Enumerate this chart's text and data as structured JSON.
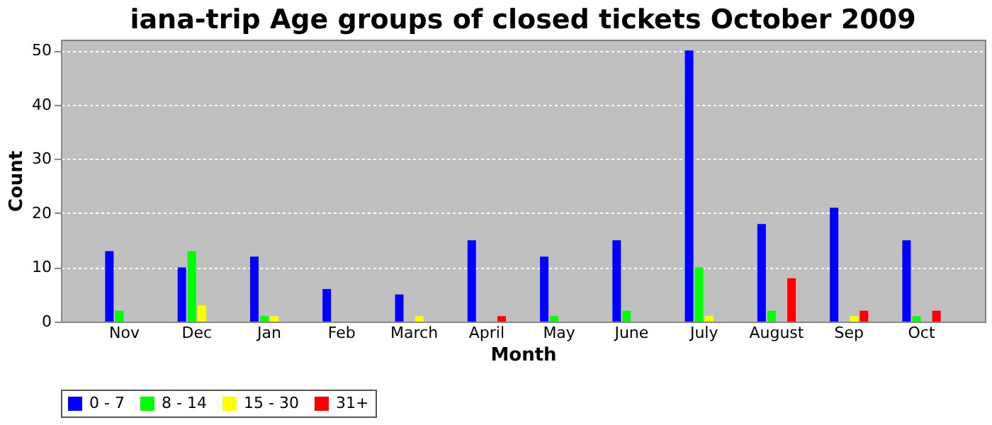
{
  "chart_data": {
    "type": "bar",
    "title": "iana-trip Age groups of closed tickets October 2009",
    "xlabel": "Month",
    "ylabel": "Count",
    "categories": [
      "Nov",
      "Dec",
      "Jan",
      "Feb",
      "March",
      "April",
      "May",
      "June",
      "July",
      "August",
      "Sep",
      "Oct"
    ],
    "series": [
      {
        "name": "0 - 7",
        "color": "#0000ff",
        "values": [
          13,
          10,
          12,
          6,
          5,
          15,
          12,
          15,
          50,
          18,
          21,
          15
        ]
      },
      {
        "name": "8 - 14",
        "color": "#00ff00",
        "values": [
          2,
          13,
          1,
          0,
          0,
          0,
          1,
          2,
          10,
          2,
          0,
          1
        ]
      },
      {
        "name": "15 - 30",
        "color": "#ffff00",
        "values": [
          0,
          3,
          1,
          0,
          1,
          0,
          0,
          0,
          1,
          0,
          1,
          0
        ]
      },
      {
        "name": "31+",
        "color": "#ff0000",
        "values": [
          0,
          0,
          0,
          0,
          0,
          1,
          0,
          0,
          0,
          8,
          2,
          2
        ]
      }
    ],
    "ylim": [
      0,
      52
    ],
    "yticks": [
      0,
      10,
      20,
      30,
      40,
      50
    ],
    "grid": "y",
    "legend": "bottom"
  }
}
